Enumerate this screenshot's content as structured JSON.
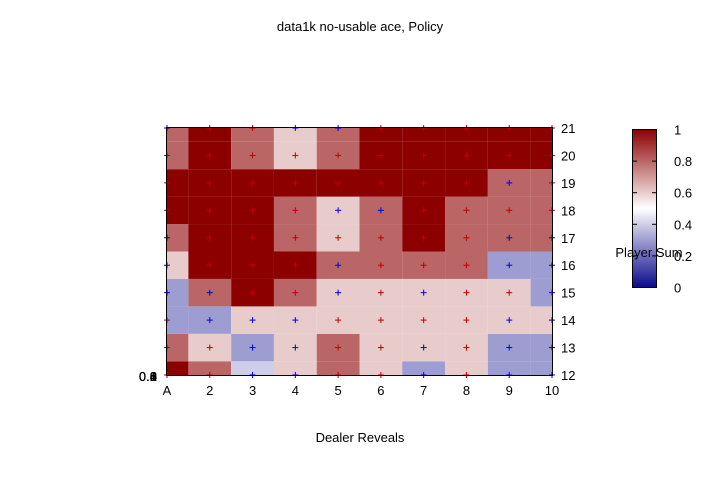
{
  "chart_data": {
    "type": "heatmap",
    "title": "data1k no-usable ace, Policy",
    "xlabel": "Dealer Reveals",
    "ylabel": "Player Sum",
    "x_tick_labels": [
      "A",
      "2",
      "3",
      "4",
      "5",
      "6",
      "7",
      "8",
      "9",
      "10"
    ],
    "y_tick_labels": [
      "12",
      "13",
      "14",
      "15",
      "16",
      "17",
      "18",
      "19",
      "20",
      "21"
    ],
    "left_axis_ticks": [
      "0",
      "0.2",
      "0.4",
      "0.6",
      "0.8",
      "1"
    ],
    "colorbar_ticks": [
      "0",
      "0.2",
      "0.4",
      "0.6",
      "0.8",
      "1"
    ],
    "colorbar_range": [
      0,
      1
    ],
    "colormap": [
      "#0a0a8c",
      "#ffffff",
      "#8c0000"
    ],
    "grid": false,
    "colorbar_placement": "right",
    "values": [
      [
        1.0,
        0.8,
        0.4,
        0.6,
        0.8,
        0.6,
        0.3,
        0.6,
        0.3,
        0.3
      ],
      [
        0.8,
        0.6,
        0.3,
        0.6,
        0.8,
        0.6,
        0.6,
        0.6,
        0.3,
        0.3
      ],
      [
        0.3,
        0.3,
        0.6,
        0.6,
        0.6,
        0.6,
        0.6,
        0.6,
        0.6,
        0.6
      ],
      [
        0.3,
        0.8,
        1.0,
        0.8,
        0.6,
        0.6,
        0.6,
        0.6,
        0.6,
        0.3
      ],
      [
        0.6,
        1.0,
        1.0,
        1.0,
        0.8,
        0.8,
        0.8,
        0.8,
        0.3,
        0.3
      ],
      [
        0.8,
        1.0,
        1.0,
        0.8,
        0.6,
        0.8,
        1.0,
        0.8,
        0.8,
        0.8
      ],
      [
        1.0,
        1.0,
        1.0,
        0.8,
        0.6,
        0.8,
        1.0,
        0.8,
        0.8,
        0.8
      ],
      [
        1.0,
        1.0,
        1.0,
        1.0,
        1.0,
        1.0,
        1.0,
        1.0,
        0.8,
        0.8
      ],
      [
        0.8,
        1.0,
        0.8,
        0.6,
        0.8,
        1.0,
        1.0,
        1.0,
        1.0,
        1.0
      ],
      [
        0.8,
        1.0,
        0.8,
        0.6,
        0.8,
        1.0,
        1.0,
        1.0,
        1.0,
        1.0
      ]
    ],
    "points": [
      [
        "red",
        "red",
        "blue",
        "blue",
        "red",
        "red",
        "blue",
        "red",
        "blue",
        "blue"
      ],
      [
        "red",
        "red",
        "blue",
        "blue",
        "red",
        "red",
        "blue",
        "red",
        "blue",
        "blue"
      ],
      [
        "red",
        "blue",
        "blue",
        "blue",
        "red",
        "red",
        "red",
        "red",
        "blue",
        "blue"
      ],
      [
        "blue",
        "blue",
        "red",
        "red",
        "blue",
        "red",
        "blue",
        "red",
        "red",
        "blue"
      ],
      [
        "blue",
        "red",
        "red",
        "red",
        "blue",
        "red",
        "red",
        "red",
        "blue",
        "blue"
      ],
      [
        "blue",
        "red",
        "red",
        "red",
        "red",
        "red",
        "red",
        "red",
        "blue",
        "blue"
      ],
      [
        "red",
        "red",
        "red",
        "red",
        "blue",
        "blue",
        "red",
        "red",
        "red",
        "red"
      ],
      [
        "red",
        "red",
        "red",
        "red",
        "red",
        "red",
        "red",
        "red",
        "blue",
        "red"
      ],
      [
        "red",
        "red",
        "red",
        "red",
        "red",
        "red",
        "red",
        "red",
        "red",
        "red"
      ],
      [
        "blue",
        "red",
        "red",
        "blue",
        "blue",
        "red",
        "red",
        "red",
        "red",
        "red"
      ]
    ]
  }
}
